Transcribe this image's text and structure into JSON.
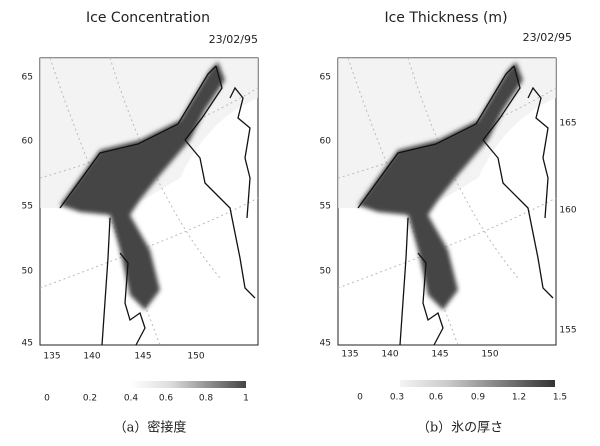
{
  "panels": [
    {
      "title": "Ice Concentration",
      "date": "23/02/95",
      "lat_labels": [
        "65",
        "60",
        "55",
        "50",
        "45"
      ],
      "lon_labels_bottom": [
        "135",
        "140",
        "145",
        "150"
      ],
      "colorbar_labels": [
        "0",
        "0.2",
        "0.4",
        "0.6",
        "0.8",
        "1"
      ],
      "caption": "（a）密接度"
    },
    {
      "title": "Ice Thickness (m)",
      "date": "23/02/95",
      "lat_labels": [
        "65",
        "60",
        "55",
        "50",
        "45"
      ],
      "lon_labels_right": [
        "165",
        "160",
        "155"
      ],
      "lon_labels_bottom": [
        "135",
        "140",
        "145",
        "150"
      ],
      "colorbar_labels": [
        "0",
        "0.3",
        "0.6",
        "0.9",
        "1.2",
        "1.5"
      ],
      "caption": "（b）氷の厚さ"
    }
  ]
}
